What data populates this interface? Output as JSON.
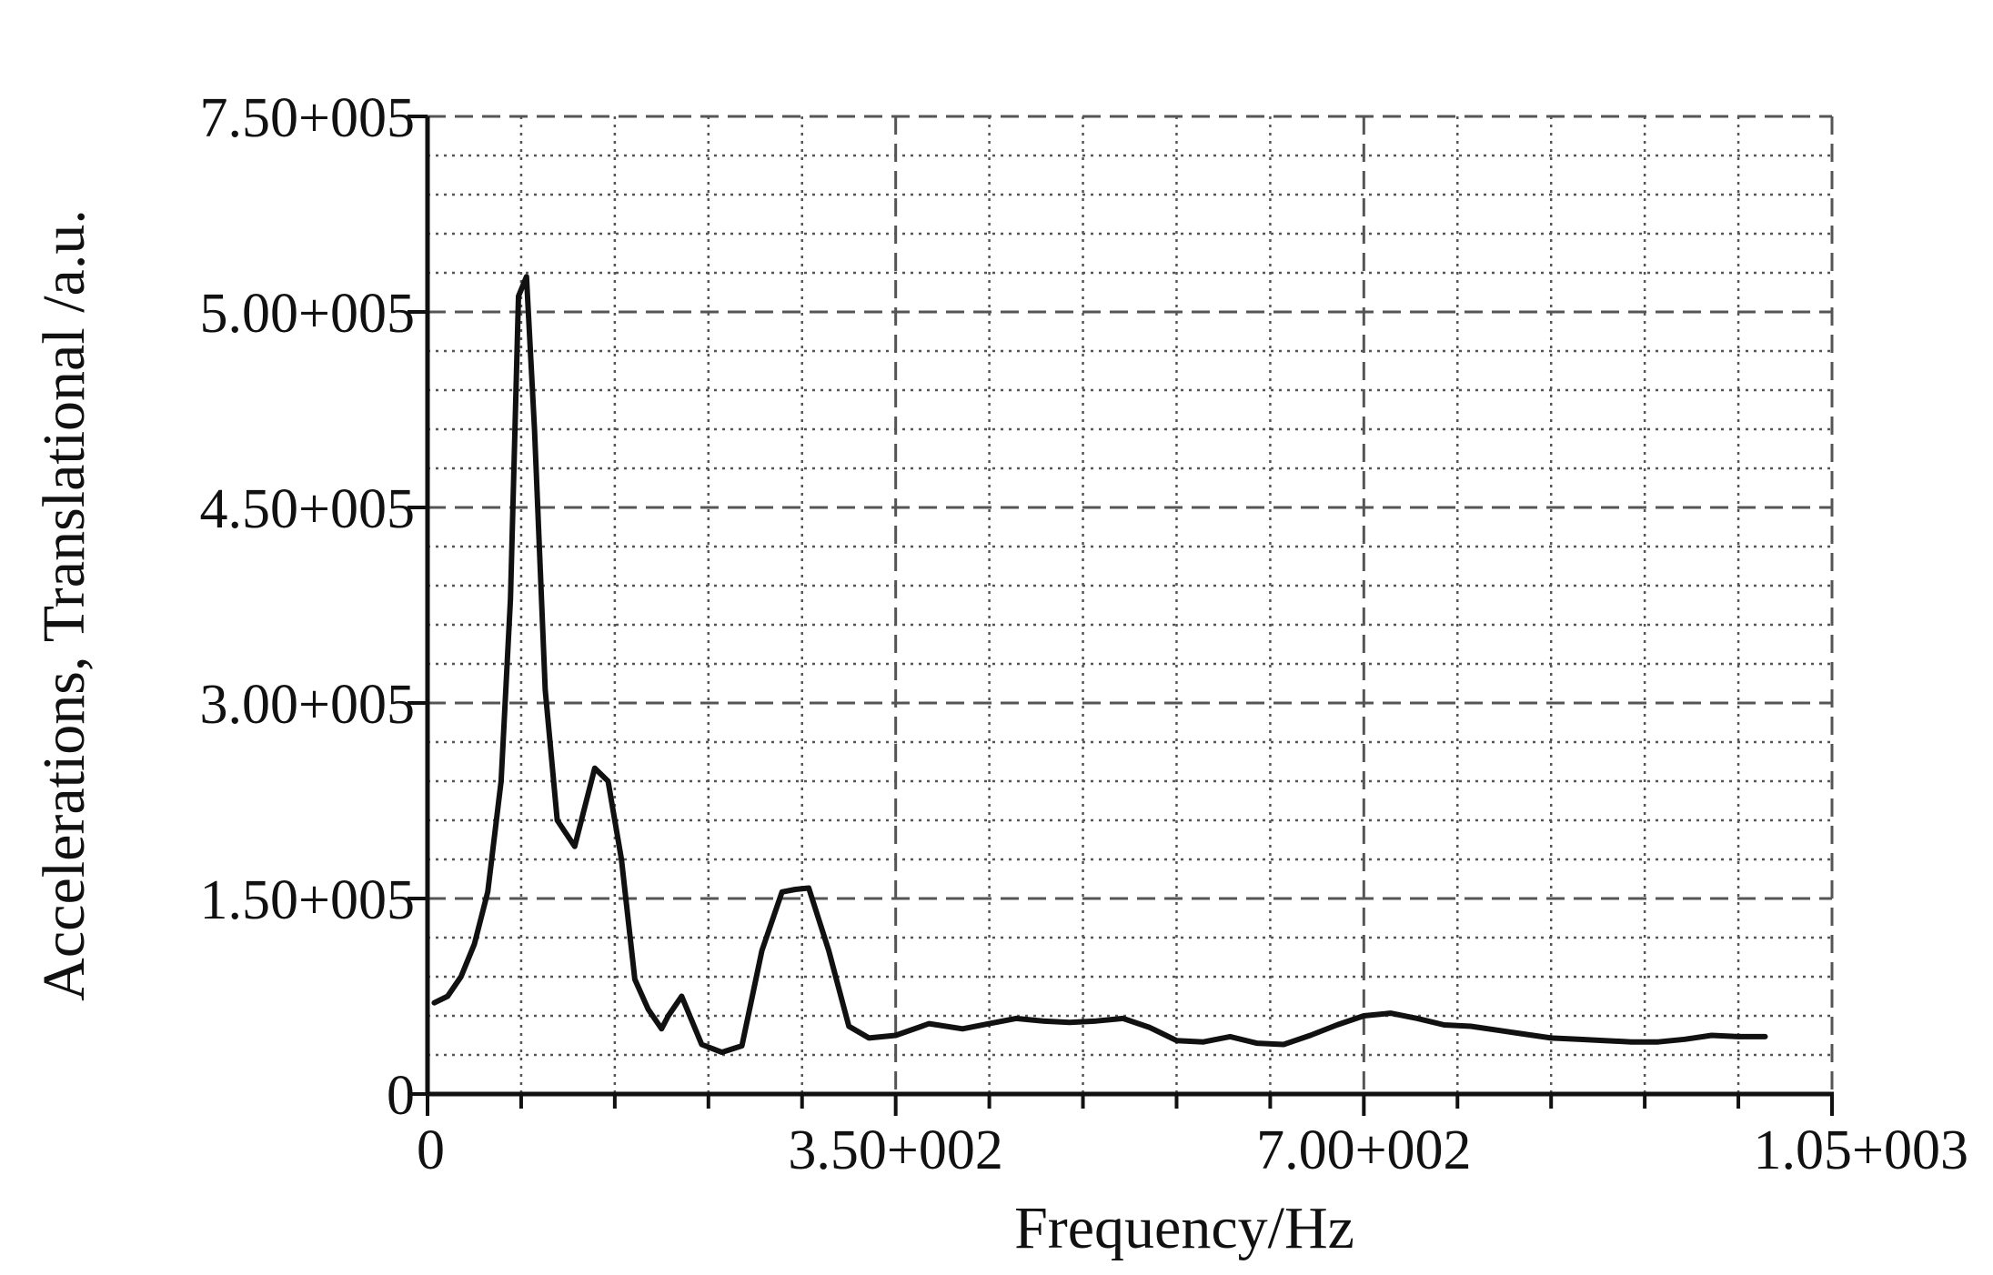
{
  "chart_data": {
    "type": "line",
    "xlabel": "Frequency/Hz",
    "ylabel": "Accelerations, Translational /a.u.",
    "xlim": [
      0,
      1050
    ],
    "x_tick_labels": [
      "0",
      "3.50+002",
      "7.00+002",
      "1.05+003"
    ],
    "y_tick_labels": [
      "7.50+005",
      "5.00+005",
      "4.50+005",
      "3.00+005",
      "1.50+005",
      "0"
    ],
    "grid": true,
    "legend": "none",
    "line_color": "#111111",
    "grid_color": "#555555",
    "series": [
      {
        "x": [
          5,
          15,
          25,
          35,
          45,
          55,
          62,
          68,
          74,
          80,
          88,
          97,
          110,
          125,
          135,
          145,
          155,
          165,
          175,
          180,
          190,
          205,
          220,
          235,
          250,
          265,
          275,
          285,
          300,
          315,
          330,
          350,
          375,
          400,
          420,
          440,
          460,
          480,
          500,
          520,
          540,
          560,
          580,
          600,
          620,
          640,
          660,
          680,
          700,
          720,
          740,
          760,
          780,
          800,
          820,
          840,
          860,
          880,
          900,
          920,
          940,
          960,
          980,
          1000
        ],
        "y": [
          70000,
          75000,
          90000,
          115000,
          155000,
          240000,
          380000,
          520000,
          545000,
          470000,
          310000,
          210000,
          190000,
          250000,
          240000,
          180000,
          88000,
          65000,
          50000,
          60000,
          75000,
          38000,
          32000,
          37000,
          110000,
          155000,
          157000,
          158000,
          110000,
          52000,
          43000,
          45000,
          54000,
          50000,
          54000,
          58000,
          56000,
          55000,
          56000,
          58000,
          51000,
          41000,
          40000,
          44000,
          39000,
          38000,
          45000,
          53000,
          60000,
          62000,
          58000,
          53000,
          52000,
          49000,
          46000,
          43000,
          42000,
          41000,
          40000,
          40000,
          42000,
          45000,
          44000,
          44000
        ]
      }
    ]
  }
}
